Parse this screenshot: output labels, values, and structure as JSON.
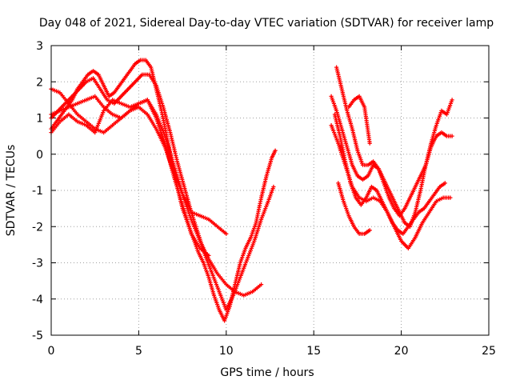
{
  "chart_data": {
    "type": "scatter",
    "title": "Day 048 of 2021, Sidereal Day-to-day VTEC variation (SDTVAR) for receiver lamp",
    "xlabel": "GPS time / hours",
    "ylabel": "SDTVAR / TECUs",
    "xlim": [
      0,
      25
    ],
    "ylim": [
      -5,
      3
    ],
    "xticks": [
      "0",
      "5",
      "10",
      "15",
      "20",
      "25"
    ],
    "yticks": [
      "-5",
      "-4",
      "-3",
      "-2",
      "-1",
      "0",
      "1",
      "2",
      "3"
    ],
    "grid": true,
    "marker": "+",
    "marker_color": "#ff0000",
    "series": [
      {
        "x": [
          0.0,
          0.3,
          0.6,
          0.9,
          1.2,
          1.5,
          1.8,
          2.1,
          2.4,
          2.7,
          3.0,
          3.3,
          3.6,
          3.9,
          4.2,
          4.5,
          4.8,
          5.1,
          5.4,
          5.7,
          6.0,
          6.3,
          6.6,
          6.9,
          7.2,
          7.5,
          7.8,
          8.1,
          8.4,
          8.7,
          9.0,
          9.3,
          9.6,
          9.9,
          10.2,
          10.5,
          10.8,
          11.1,
          11.4,
          11.7,
          12.0,
          12.3,
          12.6,
          12.8
        ],
        "y": [
          0.7,
          0.9,
          1.1,
          1.3,
          1.5,
          1.8,
          2.0,
          2.2,
          2.3,
          2.2,
          1.9,
          1.6,
          1.7,
          1.9,
          2.1,
          2.3,
          2.5,
          2.6,
          2.6,
          2.4,
          1.8,
          1.2,
          0.5,
          -0.2,
          -0.9,
          -1.5,
          -1.9,
          -2.3,
          -2.7,
          -3.0,
          -3.4,
          -3.9,
          -4.3,
          -4.6,
          -4.2,
          -3.6,
          -3.0,
          -2.6,
          -2.3,
          -1.9,
          -1.2,
          -0.6,
          -0.1,
          0.1
        ]
      },
      {
        "x": [
          0.0,
          0.4,
          0.8,
          1.2,
          1.6,
          2.0,
          2.4,
          2.8,
          3.2,
          3.6,
          4.0,
          4.4,
          4.8,
          5.2,
          5.6,
          6.0,
          6.4,
          6.8,
          7.2,
          7.6,
          8.0,
          8.4,
          8.8,
          9.2,
          9.6,
          10.0,
          10.4,
          10.8,
          11.2,
          11.6,
          12.0,
          12.4,
          12.7
        ],
        "y": [
          1.0,
          1.2,
          1.4,
          1.6,
          1.8,
          2.0,
          2.1,
          1.8,
          1.5,
          1.4,
          1.6,
          1.8,
          2.0,
          2.2,
          2.2,
          1.9,
          1.3,
          0.6,
          -0.2,
          -0.9,
          -1.6,
          -2.2,
          -2.8,
          -3.3,
          -3.8,
          -4.3,
          -3.9,
          -3.4,
          -2.9,
          -2.4,
          -1.8,
          -1.3,
          -0.9
        ]
      },
      {
        "x": [
          0.0,
          0.5,
          1.0,
          1.5,
          2.0,
          2.5,
          3.0,
          3.5,
          4.0,
          4.5,
          5.0,
          5.5,
          6.0,
          6.5,
          7.0,
          7.5,
          8.0,
          8.5,
          9.0,
          9.5,
          10.0,
          10.5,
          11.0,
          11.5,
          12.0
        ],
        "y": [
          1.1,
          1.2,
          1.3,
          1.4,
          1.5,
          1.6,
          1.3,
          1.1,
          1.0,
          1.2,
          1.4,
          1.5,
          1.1,
          0.5,
          -0.3,
          -1.1,
          -1.8,
          -2.4,
          -2.9,
          -3.3,
          -3.6,
          -3.8,
          -3.9,
          -3.8,
          -3.6
        ]
      },
      {
        "x": [
          0.0,
          0.5,
          1.0,
          1.5,
          2.0,
          2.5,
          3.0,
          3.5,
          4.0,
          4.5,
          5.0,
          5.5,
          6.0,
          6.5,
          7.0,
          7.5,
          8.0,
          8.5,
          9.0,
          9.5,
          10.0
        ],
        "y": [
          1.8,
          1.7,
          1.4,
          1.1,
          0.9,
          0.7,
          0.6,
          0.8,
          1.0,
          1.2,
          1.3,
          1.1,
          0.7,
          0.2,
          -0.5,
          -1.1,
          -1.6,
          -1.7,
          -1.8,
          -2.0,
          -2.2
        ]
      },
      {
        "x": [
          0.0,
          0.5,
          1.0,
          1.5,
          2.0,
          2.5,
          3.0,
          3.5,
          4.0,
          4.5,
          5.0,
          5.5,
          6.0,
          6.5,
          7.0,
          7.5,
          8.0,
          8.5,
          9.0
        ],
        "y": [
          0.6,
          0.9,
          1.1,
          0.9,
          0.8,
          0.6,
          1.2,
          1.5,
          1.4,
          1.3,
          1.4,
          1.5,
          1.0,
          0.3,
          -0.6,
          -1.4,
          -2.2,
          -2.6,
          -2.8
        ]
      },
      {
        "x": [
          16.0,
          16.3,
          16.6,
          16.9,
          17.2,
          17.5,
          17.8,
          18.1,
          18.4,
          18.7,
          19.0,
          19.3,
          19.6,
          19.9,
          20.2,
          20.5,
          20.8,
          21.1,
          21.4,
          21.7,
          22.0,
          22.3,
          22.6,
          22.9
        ],
        "y": [
          1.6,
          1.2,
          0.7,
          0.2,
          -0.3,
          -0.6,
          -0.7,
          -0.6,
          -0.3,
          -0.4,
          -0.7,
          -1.0,
          -1.3,
          -1.6,
          -1.9,
          -2.0,
          -1.6,
          -1.0,
          -0.3,
          0.2,
          0.5,
          0.6,
          0.5,
          0.5
        ]
      },
      {
        "x": [
          16.3,
          16.6,
          16.9,
          17.2,
          17.5,
          17.8,
          18.1,
          18.4,
          18.7,
          19.0,
          19.3,
          19.6,
          19.9,
          20.2,
          20.5,
          20.8,
          21.1,
          21.4,
          21.7,
          22.0,
          22.3,
          22.6,
          22.9
        ],
        "y": [
          2.4,
          1.8,
          1.2,
          0.7,
          0.1,
          -0.3,
          -0.3,
          -0.2,
          -0.4,
          -0.8,
          -1.2,
          -1.5,
          -1.7,
          -1.5,
          -1.2,
          -0.9,
          -0.6,
          -0.3,
          0.3,
          0.8,
          1.2,
          1.1,
          1.5
        ]
      },
      {
        "x": [
          16.0,
          16.4,
          16.8,
          17.2,
          17.6,
          18.0,
          18.4,
          18.8,
          19.2,
          19.6,
          20.0,
          20.4,
          20.8,
          21.2,
          21.6,
          22.0,
          22.4,
          22.8
        ],
        "y": [
          0.8,
          0.3,
          -0.3,
          -0.9,
          -1.2,
          -1.3,
          -1.2,
          -1.3,
          -1.6,
          -2.0,
          -2.4,
          -2.6,
          -2.3,
          -1.9,
          -1.6,
          -1.3,
          -1.2,
          -1.2
        ]
      },
      {
        "x": [
          16.2,
          16.5,
          16.8,
          17.1,
          17.4,
          17.7,
          18.0,
          18.3,
          18.6,
          18.9,
          19.2,
          19.5,
          19.8,
          20.1,
          20.4,
          20.7,
          21.0,
          21.3,
          21.6,
          21.9,
          22.2,
          22.5
        ],
        "y": [
          1.1,
          0.5,
          -0.2,
          -0.8,
          -1.2,
          -1.4,
          -1.2,
          -0.9,
          -1.0,
          -1.3,
          -1.6,
          -1.9,
          -2.1,
          -2.2,
          -2.0,
          -1.8,
          -1.6,
          -1.5,
          -1.3,
          -1.1,
          -0.9,
          -0.8
        ]
      },
      {
        "x": [
          16.4,
          16.7,
          17.0,
          17.3,
          17.6,
          17.9,
          18.2
        ],
        "y": [
          -0.8,
          -1.3,
          -1.7,
          -2.0,
          -2.2,
          -2.2,
          -2.1
        ]
      },
      {
        "x": [
          17.0,
          17.3,
          17.6,
          17.9,
          18.2
        ],
        "y": [
          1.3,
          1.5,
          1.6,
          1.3,
          0.3
        ]
      }
    ]
  }
}
